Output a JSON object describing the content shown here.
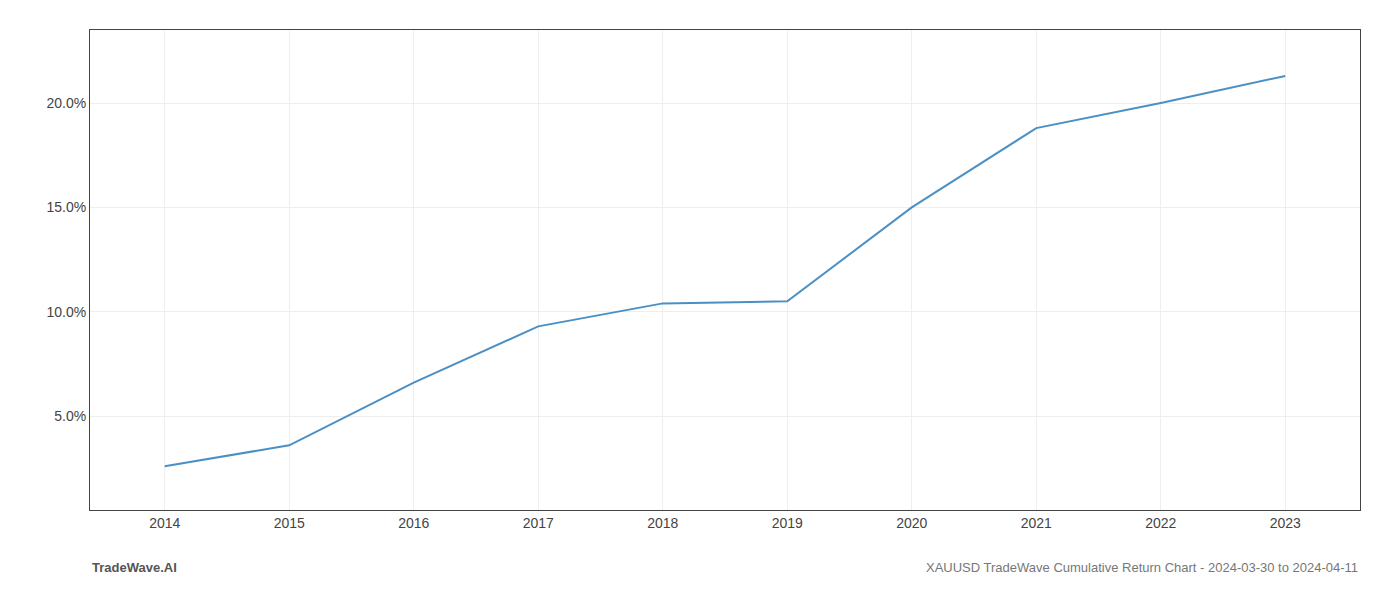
{
  "chart_data": {
    "type": "line",
    "title": "XAUUSD TradeWave Cumulative Return Chart - 2024-03-30 to 2024-04-11",
    "annotations": [
      "TradeWave.AI"
    ],
    "x": [
      2014,
      2015,
      2016,
      2017,
      2018,
      2019,
      2020,
      2021,
      2022,
      2023
    ],
    "values": [
      0.026,
      0.036,
      0.066,
      0.093,
      0.104,
      0.105,
      0.15,
      0.188,
      0.2,
      0.213
    ],
    "color": "#4a90c4",
    "xlim": [
      2013.4,
      2023.6
    ],
    "xticks": [
      2014,
      2015,
      2016,
      2017,
      2018,
      2019,
      2020,
      2021,
      2022,
      2023
    ],
    "ylim": [
      0.005,
      0.235
    ],
    "yticks": [
      {
        "value": 0.05,
        "label": "5.0%"
      },
      {
        "value": 0.1,
        "label": "10.0%"
      },
      {
        "value": 0.15,
        "label": "15.0%"
      },
      {
        "value": 0.2,
        "label": "20.0%"
      }
    ],
    "grid": true
  }
}
